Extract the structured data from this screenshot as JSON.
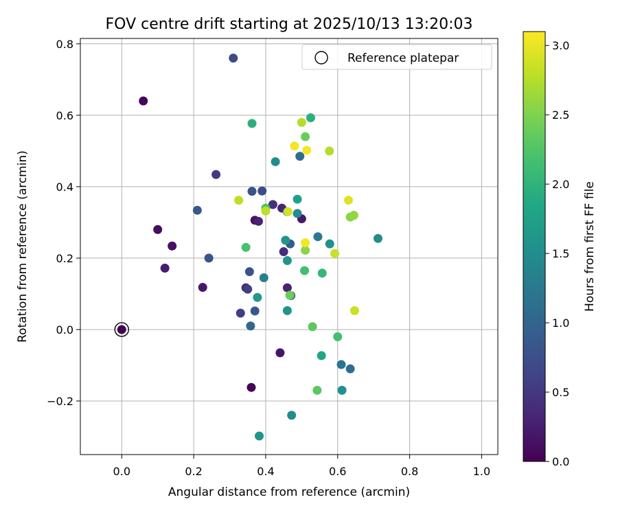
{
  "chart_data": {
    "type": "scatter",
    "title": "FOV centre drift starting at 2025/10/13 13:20:03",
    "xlabel": "Angular distance from reference (arcmin)",
    "ylabel": "Rotation from reference (arcmin)",
    "xlim": [
      -0.115,
      1.045
    ],
    "ylim": [
      -0.35,
      0.815
    ],
    "xticks": [
      0.0,
      0.2,
      0.4,
      0.6,
      0.8,
      1.0
    ],
    "xtick_labels": [
      "0.0",
      "0.2",
      "0.4",
      "0.6",
      "0.8",
      "1.0"
    ],
    "yticks": [
      -0.2,
      0.0,
      0.2,
      0.4,
      0.6,
      0.8
    ],
    "ytick_labels": [
      "−0.2",
      "0.0",
      "0.2",
      "0.4",
      "0.6",
      "0.8"
    ],
    "grid": true,
    "legend": {
      "location": "top-right",
      "entries": [
        "Reference platepar"
      ]
    },
    "reference_point": {
      "x": 0.0,
      "y": 0.0,
      "hours": 0.0
    },
    "colorbar": {
      "label": "Hours from first FF file",
      "range": [
        0.0,
        3.1
      ],
      "ticks": [
        0.0,
        0.5,
        1.0,
        1.5,
        2.0,
        2.5,
        3.0
      ],
      "tick_labels": [
        "0.0",
        "0.5",
        "1.0",
        "1.5",
        "2.0",
        "2.5",
        "3.0"
      ],
      "colormap": "viridis"
    },
    "points": [
      {
        "x": 0.06,
        "y": 0.64,
        "hours": 0.05
      },
      {
        "x": 0.1,
        "y": 0.28,
        "hours": 0.1
      },
      {
        "x": 0.14,
        "y": 0.234,
        "hours": 0.15
      },
      {
        "x": 0.12,
        "y": 0.172,
        "hours": 0.25
      },
      {
        "x": 0.225,
        "y": 0.118,
        "hours": 0.2
      },
      {
        "x": 0.36,
        "y": -0.162,
        "hours": 0.02
      },
      {
        "x": 0.44,
        "y": -0.065,
        "hours": 0.18
      },
      {
        "x": 0.37,
        "y": 0.306,
        "hours": 0.15
      },
      {
        "x": 0.38,
        "y": 0.303,
        "hours": 0.3
      },
      {
        "x": 0.5,
        "y": 0.31,
        "hours": 0.2
      },
      {
        "x": 0.445,
        "y": 0.34,
        "hours": 0.3
      },
      {
        "x": 0.345,
        "y": 0.117,
        "hours": 0.35
      },
      {
        "x": 0.46,
        "y": 0.117,
        "hours": 0.3
      },
      {
        "x": 0.45,
        "y": 0.218,
        "hours": 0.4
      },
      {
        "x": 0.42,
        "y": 0.35,
        "hours": 0.45
      },
      {
        "x": 0.262,
        "y": 0.434,
        "hours": 0.5
      },
      {
        "x": 0.35,
        "y": 0.113,
        "hours": 0.55
      },
      {
        "x": 0.33,
        "y": 0.046,
        "hours": 0.55
      },
      {
        "x": 0.31,
        "y": 0.76,
        "hours": 0.7
      },
      {
        "x": 0.242,
        "y": 0.2,
        "hours": 0.8
      },
      {
        "x": 0.21,
        "y": 0.334,
        "hours": 0.85
      },
      {
        "x": 0.362,
        "y": 0.387,
        "hours": 0.8
      },
      {
        "x": 0.39,
        "y": 0.388,
        "hours": 0.7
      },
      {
        "x": 0.355,
        "y": 0.162,
        "hours": 0.8
      },
      {
        "x": 0.37,
        "y": 0.052,
        "hours": 0.85
      },
      {
        "x": 0.468,
        "y": 0.24,
        "hours": 0.9
      },
      {
        "x": 0.47,
        "y": 0.095,
        "hours": 0.9
      },
      {
        "x": 0.358,
        "y": 0.01,
        "hours": 1.05
      },
      {
        "x": 0.495,
        "y": 0.485,
        "hours": 1.1
      },
      {
        "x": 0.635,
        "y": -0.11,
        "hours": 1.1
      },
      {
        "x": 0.61,
        "y": -0.098,
        "hours": 1.2
      },
      {
        "x": 0.545,
        "y": 0.26,
        "hours": 1.25
      },
      {
        "x": 0.395,
        "y": 0.145,
        "hours": 1.35
      },
      {
        "x": 0.427,
        "y": 0.47,
        "hours": 1.5
      },
      {
        "x": 0.472,
        "y": -0.24,
        "hours": 1.5
      },
      {
        "x": 0.612,
        "y": -0.17,
        "hours": 1.55
      },
      {
        "x": 0.712,
        "y": 0.255,
        "hours": 1.5
      },
      {
        "x": 0.578,
        "y": 0.24,
        "hours": 1.55
      },
      {
        "x": 0.488,
        "y": 0.325,
        "hours": 1.5
      },
      {
        "x": 0.46,
        "y": 0.33,
        "hours": 1.55
      },
      {
        "x": 0.455,
        "y": 0.25,
        "hours": 1.6
      },
      {
        "x": 0.46,
        "y": 0.193,
        "hours": 1.6
      },
      {
        "x": 0.377,
        "y": 0.09,
        "hours": 1.65
      },
      {
        "x": 0.46,
        "y": 0.053,
        "hours": 1.6
      },
      {
        "x": 0.382,
        "y": -0.298,
        "hours": 1.6
      },
      {
        "x": 0.488,
        "y": 0.365,
        "hours": 1.75
      },
      {
        "x": 0.555,
        "y": -0.073,
        "hours": 1.8
      },
      {
        "x": 0.525,
        "y": 0.593,
        "hours": 1.95
      },
      {
        "x": 0.362,
        "y": 0.577,
        "hours": 1.95
      },
      {
        "x": 0.557,
        "y": 0.158,
        "hours": 2.05
      },
      {
        "x": 0.6,
        "y": -0.02,
        "hours": 2.15
      },
      {
        "x": 0.508,
        "y": 0.165,
        "hours": 2.15
      },
      {
        "x": 0.345,
        "y": 0.23,
        "hours": 2.2
      },
      {
        "x": 0.4,
        "y": 0.34,
        "hours": 2.2
      },
      {
        "x": 0.53,
        "y": 0.008,
        "hours": 2.3
      },
      {
        "x": 0.543,
        "y": -0.17,
        "hours": 2.3
      },
      {
        "x": 0.467,
        "y": 0.096,
        "hours": 2.4
      },
      {
        "x": 0.51,
        "y": 0.54,
        "hours": 2.4
      },
      {
        "x": 0.51,
        "y": 0.222,
        "hours": 2.55
      },
      {
        "x": 0.635,
        "y": 0.315,
        "hours": 2.55
      },
      {
        "x": 0.645,
        "y": 0.32,
        "hours": 2.6
      },
      {
        "x": 0.5,
        "y": 0.58,
        "hours": 2.75
      },
      {
        "x": 0.577,
        "y": 0.5,
        "hours": 2.75
      },
      {
        "x": 0.325,
        "y": 0.362,
        "hours": 2.8
      },
      {
        "x": 0.4,
        "y": 0.332,
        "hours": 2.8
      },
      {
        "x": 0.592,
        "y": 0.213,
        "hours": 2.85
      },
      {
        "x": 0.647,
        "y": 0.053,
        "hours": 2.85
      },
      {
        "x": 0.462,
        "y": 0.33,
        "hours": 2.9
      },
      {
        "x": 0.63,
        "y": 0.362,
        "hours": 2.95
      },
      {
        "x": 0.48,
        "y": 0.514,
        "hours": 3.05
      },
      {
        "x": 0.514,
        "y": 0.502,
        "hours": 3.05
      },
      {
        "x": 0.51,
        "y": 0.243,
        "hours": 3.05
      }
    ]
  }
}
